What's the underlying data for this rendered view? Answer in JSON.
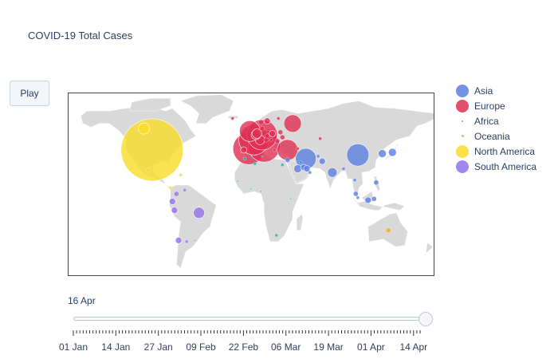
{
  "title": "COVID-19 Total Cases",
  "play_label": "Play",
  "colors": {
    "land": "#d9d9d9",
    "Asia": "#5b7fe0",
    "Europe": "#e03052",
    "Africa": "#1fb2a6",
    "Oceania": "#f5a623",
    "North America": "#f9dc27",
    "South America": "#9370eb"
  },
  "legend": [
    {
      "name": "Asia",
      "color": "#5b7fe0",
      "size": 16
    },
    {
      "name": "Europe",
      "color": "#e03052",
      "size": 16
    },
    {
      "name": "Africa",
      "color": "#1fb2a6",
      "size": 2
    },
    {
      "name": "Oceania",
      "color": "#f5a623",
      "size": 3
    },
    {
      "name": "North America",
      "color": "#f9dc27",
      "size": 16
    },
    {
      "name": "South America",
      "color": "#9370eb",
      "size": 16
    }
  ],
  "slider": {
    "current_label": "16 Apr",
    "tick_labels": [
      "01 Jan",
      "14 Jan",
      "27 Jan",
      "09 Feb",
      "22 Feb",
      "06 Mar",
      "19 Mar",
      "01 Apr",
      "14 Apr"
    ],
    "total_steps": 107,
    "current_step": 106
  },
  "bubbles": [
    {
      "continent": "North America",
      "lon": -98,
      "lat": 39,
      "r": 39
    },
    {
      "continent": "North America",
      "lon": -106,
      "lat": 56,
      "r": 7
    },
    {
      "continent": "North America",
      "lon": -102,
      "lat": 23,
      "r": 3
    },
    {
      "continent": "North America",
      "lon": -80,
      "lat": 9,
      "r": 2
    },
    {
      "continent": "North America",
      "lon": -70,
      "lat": 19,
      "r": 2
    },
    {
      "continent": "Europe",
      "lon": -3,
      "lat": 40,
      "r": 20
    },
    {
      "continent": "Europe",
      "lon": 12,
      "lat": 42,
      "r": 20
    },
    {
      "continent": "Europe",
      "lon": 2,
      "lat": 47,
      "r": 19
    },
    {
      "continent": "Europe",
      "lon": 10,
      "lat": 51,
      "r": 19
    },
    {
      "continent": "Europe",
      "lon": -2,
      "lat": 54,
      "r": 13
    },
    {
      "continent": "Europe",
      "lon": 35,
      "lat": 39,
      "r": 13
    },
    {
      "continent": "Europe",
      "lon": 40,
      "lat": 60,
      "r": 11
    },
    {
      "continent": "Europe",
      "lon": 8,
      "lat": 47,
      "r": 6
    },
    {
      "continent": "Europe",
      "lon": 4,
      "lat": 51,
      "r": 6
    },
    {
      "continent": "Europe",
      "lon": 5,
      "lat": 52,
      "r": 6
    },
    {
      "continent": "Europe",
      "lon": 20,
      "lat": 52,
      "r": 4
    },
    {
      "continent": "Europe",
      "lon": 15,
      "lat": 62,
      "r": 4
    },
    {
      "continent": "Europe",
      "lon": 14,
      "lat": 47,
      "r": 3
    },
    {
      "continent": "Europe",
      "lon": -8,
      "lat": 39,
      "r": 4
    },
    {
      "continent": "Europe",
      "lon": 25,
      "lat": 46,
      "r": 3
    },
    {
      "continent": "Europe",
      "lon": -19,
      "lat": 64,
      "r": 2
    },
    {
      "continent": "Europe",
      "lon": 30,
      "lat": 49,
      "r": 3
    },
    {
      "continent": "Europe",
      "lon": 28,
      "lat": 53,
      "r": 3
    },
    {
      "continent": "Europe",
      "lon": 10,
      "lat": 56,
      "r": 3
    },
    {
      "continent": "Europe",
      "lon": 9,
      "lat": 61,
      "r": 3
    },
    {
      "continent": "Europe",
      "lon": 22,
      "lat": 39,
      "r": 2
    },
    {
      "continent": "Europe",
      "lon": 19,
      "lat": 47,
      "r": 2
    },
    {
      "continent": "Europe",
      "lon": 15,
      "lat": 50,
      "r": 3
    },
    {
      "continent": "Europe",
      "lon": 45,
      "lat": 40,
      "r": 2
    },
    {
      "continent": "Europe",
      "lon": 67,
      "lat": 48,
      "r": 2
    },
    {
      "continent": "Europe",
      "lon": 26,
      "lat": 64,
      "r": 2
    },
    {
      "continent": "Asia",
      "lon": 53,
      "lat": 32,
      "r": 13
    },
    {
      "continent": "Asia",
      "lon": 104,
      "lat": 35,
      "r": 14
    },
    {
      "continent": "Asia",
      "lon": 79,
      "lat": 21,
      "r": 6
    },
    {
      "continent": "Asia",
      "lon": 45,
      "lat": 24,
      "r": 5
    },
    {
      "continent": "Asia",
      "lon": 138,
      "lat": 37,
      "r": 5
    },
    {
      "continent": "Asia",
      "lon": 128,
      "lat": 36,
      "r": 5
    },
    {
      "continent": "Asia",
      "lon": 69,
      "lat": 30,
      "r": 4
    },
    {
      "continent": "Asia",
      "lon": 51,
      "lat": 25,
      "r": 4
    },
    {
      "continent": "Asia",
      "lon": 54,
      "lat": 24,
      "r": 4
    },
    {
      "continent": "Asia",
      "lon": 35,
      "lat": 31,
      "r": 3
    },
    {
      "continent": "Asia",
      "lon": 122,
      "lat": 13,
      "r": 3
    },
    {
      "continent": "Asia",
      "lon": 114,
      "lat": -1,
      "r": 4
    },
    {
      "continent": "Asia",
      "lon": 102,
      "lat": 4,
      "r": 3
    },
    {
      "continent": "Asia",
      "lon": 101,
      "lat": 15,
      "r": 2
    },
    {
      "continent": "Asia",
      "lon": 104,
      "lat": 1,
      "r": 2
    },
    {
      "continent": "Asia",
      "lon": 90,
      "lat": 24,
      "r": 2
    },
    {
      "continent": "Asia",
      "lon": 120,
      "lat": 0,
      "r": 3
    },
    {
      "continent": "Asia",
      "lon": 57,
      "lat": 21,
      "r": 2
    },
    {
      "continent": "Asia",
      "lon": 48,
      "lat": 29,
      "r": 2
    },
    {
      "continent": "Asia",
      "lon": 65,
      "lat": 34,
      "r": 2
    },
    {
      "continent": "Africa",
      "lon": 3,
      "lat": 28,
      "r": 2
    },
    {
      "continent": "Africa",
      "lon": -7,
      "lat": 32,
      "r": 2
    },
    {
      "continent": "Africa",
      "lon": 30,
      "lat": 27,
      "r": 2
    },
    {
      "continent": "Africa",
      "lon": 24,
      "lat": -29,
      "r": 2
    },
    {
      "continent": "Africa",
      "lon": -1,
      "lat": 8,
      "r": 1
    },
    {
      "continent": "Africa",
      "lon": 9,
      "lat": 6,
      "r": 1
    },
    {
      "continent": "Africa",
      "lon": -14,
      "lat": 14,
      "r": 1
    },
    {
      "continent": "Africa",
      "lon": 38,
      "lat": 0,
      "r": 1
    },
    {
      "continent": "Africa",
      "lon": 10,
      "lat": 34,
      "r": 1
    },
    {
      "continent": "Oceania",
      "lon": 134,
      "lat": -25,
      "r": 3
    },
    {
      "continent": "Oceania",
      "lon": 172,
      "lat": -41,
      "r": 1
    },
    {
      "continent": "South America",
      "lon": -52,
      "lat": -11,
      "r": 7
    },
    {
      "continent": "South America",
      "lon": -78,
      "lat": -2,
      "r": 4
    },
    {
      "continent": "South America",
      "lon": -76,
      "lat": -9,
      "r": 4
    },
    {
      "continent": "South America",
      "lon": -72,
      "lat": -33,
      "r": 4
    },
    {
      "continent": "South America",
      "lon": -74,
      "lat": 4,
      "r": 3
    },
    {
      "continent": "South America",
      "lon": -64,
      "lat": -34,
      "r": 2
    },
    {
      "continent": "South America",
      "lon": -66,
      "lat": 7,
      "r": 2
    },
    {
      "continent": "South America",
      "lon": -56,
      "lat": -33,
      "r": 1
    }
  ]
}
